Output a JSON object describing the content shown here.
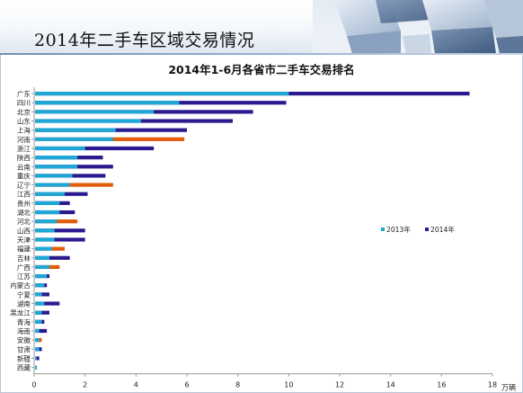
{
  "banner": {
    "title": "2014年二手车区域交易情况"
  },
  "colors": {
    "series_2013": "#1fa8d6",
    "series_2014": "#2b1a8f",
    "highlight_2014": "#e25c0a",
    "axis": "#9a9a9a",
    "text": "#222222"
  },
  "chart_data": {
    "type": "bar",
    "orientation": "horizontal",
    "title": "2014年1-6月各省市二手车交易排名",
    "unit_label": "万辆",
    "xlim": [
      0,
      18
    ],
    "x_ticks": [
      "0",
      "2",
      "4",
      "6",
      "8",
      "10",
      "12",
      "14",
      "16",
      "18"
    ],
    "grid": false,
    "legend_placement": "center-right",
    "categories": [
      "广东",
      "四川",
      "北京",
      "山东",
      "上海",
      "河南",
      "浙江",
      "陕西",
      "云南",
      "重庆",
      "辽宁",
      "江西",
      "贵州",
      "湖北",
      "河北",
      "山西",
      "天津",
      "福建",
      "吉林",
      "广西",
      "江苏",
      "内蒙古",
      "宁夏",
      "湖南",
      "黑龙江",
      "青海",
      "海南",
      "安徽",
      "甘肃",
      "新疆",
      "西藏"
    ],
    "series": [
      {
        "name": "2013年",
        "values": [
          10.0,
          5.7,
          4.7,
          4.2,
          3.2,
          3.1,
          2.0,
          1.7,
          1.7,
          1.5,
          1.4,
          1.2,
          1.0,
          1.0,
          0.9,
          0.8,
          0.8,
          0.7,
          0.6,
          0.6,
          0.5,
          0.4,
          0.3,
          0.4,
          0.3,
          0.3,
          0.2,
          0.2,
          0.2,
          0.1,
          0.1
        ]
      },
      {
        "name": "2014年",
        "values": [
          17.1,
          9.9,
          8.6,
          7.8,
          6.0,
          5.9,
          4.7,
          2.7,
          3.1,
          2.8,
          3.1,
          2.1,
          1.4,
          1.6,
          1.7,
          2.0,
          2.0,
          1.2,
          1.4,
          1.0,
          0.6,
          0.5,
          0.6,
          1.0,
          0.6,
          0.4,
          0.5,
          0.3,
          0.3,
          0.2,
          0.1
        ]
      }
    ],
    "highlighted_2014": [
      "河南",
      "辽宁",
      "河北",
      "福建",
      "广西",
      "安徽"
    ]
  }
}
